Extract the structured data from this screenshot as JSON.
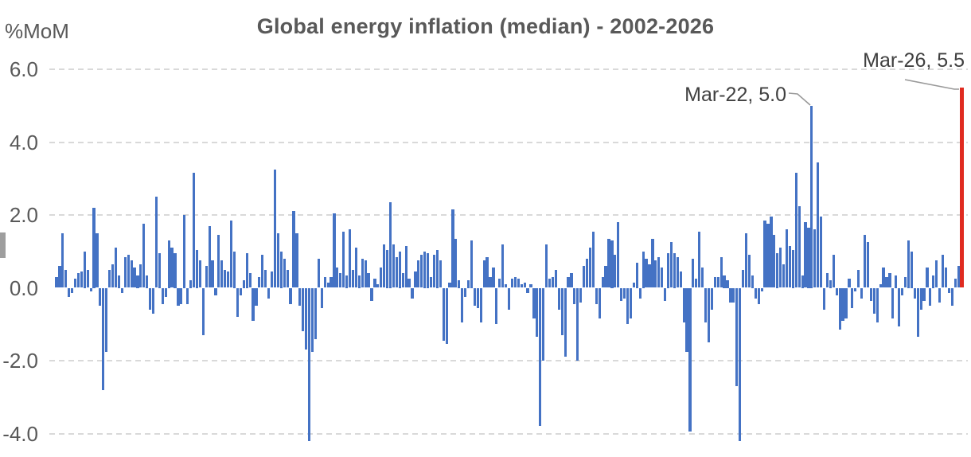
{
  "chart": {
    "title": "Global energy inflation (median) - 2002-2026",
    "y_axis_unit": "%MoM",
    "y_ticks": [
      {
        "label": "6.0",
        "value": 6,
        "gridline": true
      },
      {
        "label": "4.0",
        "value": 4,
        "gridline": true
      },
      {
        "label": "2.0",
        "value": 2,
        "gridline": true
      },
      {
        "label": "0.0",
        "value": 0,
        "gridline": false
      },
      {
        "label": "-2.0",
        "value": -2,
        "gridline": true
      },
      {
        "label": "-4.0",
        "value": -4,
        "gridline": true
      }
    ],
    "annotations": {
      "mar22": "Mar-22, 5.0",
      "mar26": "Mar-26, 5.5"
    }
  },
  "colors": {
    "bar_blue": "#4472c4",
    "bar_red": "#e02b20",
    "gridline": "#d9d9d9",
    "text_gray": "#595959",
    "annotation_gray": "#404040",
    "leader_line": "#999999"
  },
  "chart_data": {
    "type": "bar",
    "title": "Global energy inflation (median) - 2002-2026",
    "xlabel": "",
    "ylabel": "%MoM",
    "x_start": "2002-01",
    "x_end": "2026-03",
    "frequency": "monthly",
    "ylim": [
      -4.6,
      6.4
    ],
    "grid": "dashed horizontal at 6, 4, 2, -2, -4",
    "legend_position": "none",
    "annotations": [
      {
        "label": "Mar-22, 5.0",
        "month": "2022-03",
        "value": 5.0,
        "series_color": "#4472c4"
      },
      {
        "label": "Mar-26, 5.5",
        "month": "2026-03",
        "value": 5.5,
        "series_color": "#e02b20"
      }
    ],
    "highlight_last_bar": true,
    "values": [
      0.3,
      0.6,
      1.5,
      0.5,
      -0.25,
      -0.15,
      0.25,
      0.4,
      0.45,
      1.0,
      0.5,
      -0.1,
      2.2,
      1.5,
      -0.5,
      -2.8,
      -1.75,
      0.5,
      0.65,
      1.1,
      0.35,
      -0.15,
      0.85,
      0.9,
      0.75,
      0.55,
      0.35,
      0.65,
      1.75,
      0.35,
      -0.6,
      -0.7,
      2.5,
      0.95,
      -0.45,
      -0.25,
      1.3,
      1.1,
      0.95,
      -0.5,
      -0.45,
      2.0,
      -0.45,
      0.2,
      3.15,
      1.05,
      0.75,
      -1.3,
      0.6,
      1.7,
      0.75,
      -0.2,
      1.45,
      0.75,
      0.5,
      0.45,
      1.85,
      1.0,
      -0.8,
      -0.2,
      0.2,
      0.95,
      0.4,
      -0.9,
      -0.5,
      0.3,
      0.9,
      0.5,
      -0.3,
      0.45,
      3.25,
      1.5,
      1.0,
      0.8,
      0.5,
      -0.45,
      2.1,
      1.5,
      -0.5,
      -1.2,
      -1.7,
      -4.2,
      -1.75,
      -1.4,
      0.8,
      -0.55,
      0.3,
      0.15,
      0.3,
      2.05,
      0.55,
      0.4,
      1.55,
      0.35,
      1.6,
      0.5,
      1.1,
      0.35,
      0.8,
      0.75,
      0.4,
      -0.35,
      0.25,
      0.1,
      0.55,
      1.2,
      1.05,
      2.35,
      1.2,
      0.85,
      1.0,
      0.4,
      1.15,
      0.25,
      -0.3,
      0.45,
      0.75,
      0.9,
      1.0,
      0.95,
      0.3,
      0.9,
      1.05,
      0.75,
      -1.45,
      -1.55,
      0.15,
      2.15,
      1.35,
      0.2,
      -0.95,
      -0.25,
      0.2,
      1.3,
      -0.5,
      -0.55,
      -0.95,
      0.75,
      0.85,
      0.3,
      0.55,
      -1.0,
      0.25,
      1.2,
      0.1,
      -0.6,
      0.25,
      0.3,
      0.25,
      0.1,
      0.15,
      -0.15,
      0.1,
      -0.85,
      -1.35,
      -3.8,
      -2.0,
      1.2,
      0.25,
      0.3,
      0.5,
      -0.6,
      -1.3,
      -1.9,
      0.3,
      0.4,
      -0.45,
      -2.0,
      -0.4,
      0.6,
      0.8,
      1.1,
      1.55,
      -0.45,
      -0.85,
      0.3,
      0.6,
      1.35,
      1.3,
      0.9,
      1.8,
      -0.35,
      -0.3,
      -1.0,
      -0.85,
      0.15,
      0.7,
      -0.3,
      1.0,
      0.8,
      0.65,
      1.35,
      0.75,
      0.85,
      0.55,
      -0.35,
      0.95,
      1.25,
      0.95,
      0.85,
      0.45,
      -0.95,
      -1.75,
      -3.95,
      0.8,
      0.25,
      1.55,
      0.55,
      -0.95,
      -1.5,
      -0.6,
      0.3,
      0.3,
      0.85,
      0.35,
      0.2,
      -0.4,
      -0.4,
      -2.7,
      -4.2,
      0.5,
      1.5,
      0.9,
      0.35,
      -0.3,
      -0.45,
      -0.1,
      1.85,
      1.75,
      1.95,
      1.45,
      0.95,
      1.1,
      0.65,
      1.6,
      1.15,
      1.05,
      3.15,
      2.25,
      0.35,
      1.8,
      1.65,
      5.0,
      1.6,
      3.45,
      1.95,
      -0.6,
      0.4,
      0.2,
      0.9,
      -0.2,
      -1.15,
      -0.9,
      -0.85,
      0.25,
      -0.55,
      -0.1,
      0.5,
      -0.3,
      1.45,
      1.25,
      -0.35,
      -0.7,
      -0.95,
      0.1,
      0.55,
      0.3,
      0.4,
      -0.85,
      0.35,
      -1.05,
      -0.2,
      0.3,
      1.3,
      1.0,
      -0.3,
      -1.35,
      -0.6,
      -0.35,
      0.55,
      -0.5,
      0.35,
      0.75,
      -0.4,
      0.9,
      0.55,
      -0.15,
      -0.5,
      0.25,
      0.6,
      5.5
    ]
  }
}
